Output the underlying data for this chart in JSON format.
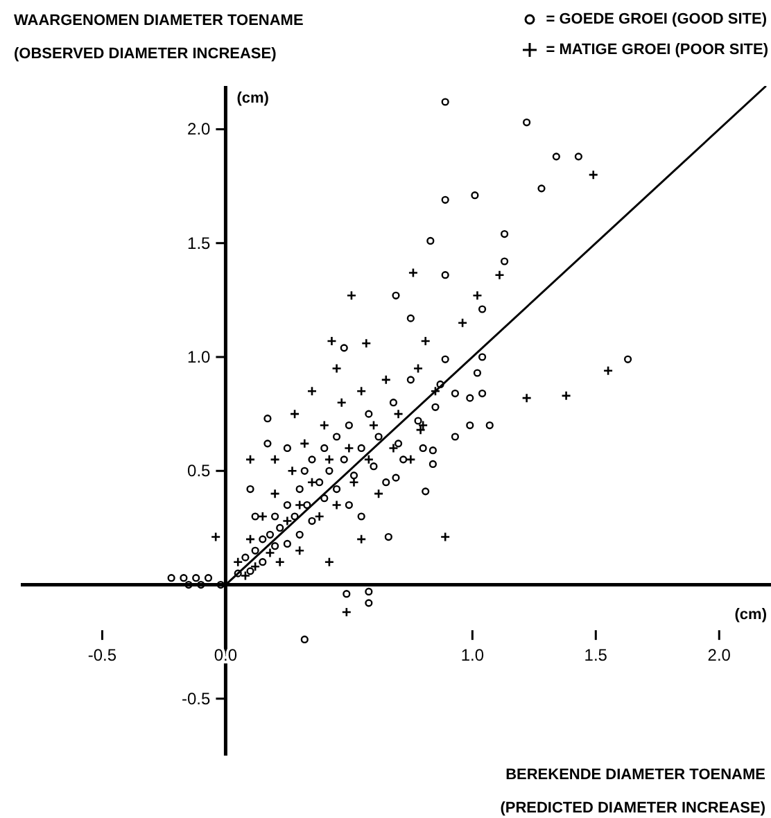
{
  "chart_data": {
    "type": "scatter",
    "ylabel": "WAARGENOMEN DIAMETER TOENAME\n(OBSERVED DIAMETER INCREASE)",
    "xlabel": "BEREKENDE DIAMETER TOENAME\n(PREDICTED DIAMETER INCREASE)",
    "annotations": [
      "(cm)",
      "(cm)"
    ],
    "xlim": [
      -0.83,
      2.21
    ],
    "ylim": [
      -0.75,
      2.19
    ],
    "xticks": [
      {
        "value": -0.5,
        "label": "-0.5"
      },
      {
        "value": 0,
        "label": "0.0"
      },
      {
        "value": 1,
        "label": "1.0"
      },
      {
        "value": 1.5,
        "label": "1.5"
      },
      {
        "value": 2,
        "label": "2.0"
      }
    ],
    "yticks": [
      {
        "value": -0.5,
        "label": "-0.5"
      },
      {
        "value": 0.5,
        "label": "0.5"
      },
      {
        "value": 1,
        "label": "1.0"
      },
      {
        "value": 1.5,
        "label": "1.5"
      },
      {
        "value": 2,
        "label": "2.0"
      }
    ],
    "grid": false,
    "legend": "top right",
    "series": [
      {
        "name": "= GOEDE GROEI (GOOD SITE)",
        "marker": "circle",
        "color": "#000000",
        "x": [
          0.89,
          1.22,
          1.34,
          1.43,
          1.28,
          0.89,
          1.01,
          1.13,
          0.83,
          1.13,
          0.89,
          0.69,
          0.75,
          1.04,
          0.48,
          1.04,
          0.89,
          1.63,
          1.02,
          0.87,
          0.93,
          0.99,
          1.04,
          0.99,
          1.07,
          0.93,
          0.84,
          0.84,
          0.69,
          0.81,
          0.66,
          0.49,
          0.58,
          0.58,
          0.32,
          -0.22,
          -0.17,
          -0.12,
          -0.07,
          -0.15,
          -0.1,
          -0.02,
          0.05,
          0.08,
          0.1,
          0.12,
          0.15,
          0.15,
          0.18,
          0.2,
          0.2,
          0.22,
          0.25,
          0.25,
          0.28,
          0.3,
          0.3,
          0.32,
          0.33,
          0.35,
          0.35,
          0.38,
          0.4,
          0.4,
          0.42,
          0.45,
          0.45,
          0.48,
          0.5,
          0.5,
          0.52,
          0.55,
          0.55,
          0.58,
          0.6,
          0.62,
          0.65,
          0.68,
          0.7,
          0.72,
          0.75,
          0.78,
          0.8,
          0.85,
          0.17,
          0.17,
          0.1,
          0.25,
          0.12
        ],
        "values": [
          2.12,
          2.03,
          1.88,
          1.88,
          1.74,
          1.69,
          1.71,
          1.54,
          1.51,
          1.42,
          1.36,
          1.27,
          1.17,
          1.21,
          1.04,
          1.0,
          0.99,
          0.99,
          0.93,
          0.88,
          0.84,
          0.82,
          0.84,
          0.7,
          0.7,
          0.65,
          0.59,
          0.53,
          0.47,
          0.41,
          0.21,
          -0.04,
          -0.08,
          -0.03,
          -0.24,
          0.03,
          0.03,
          0.03,
          0.03,
          0,
          0,
          0,
          0.05,
          0.12,
          0.06,
          0.15,
          0.2,
          0.1,
          0.22,
          0.17,
          0.3,
          0.25,
          0.18,
          0.35,
          0.3,
          0.22,
          0.42,
          0.5,
          0.35,
          0.28,
          0.55,
          0.45,
          0.38,
          0.6,
          0.5,
          0.42,
          0.65,
          0.55,
          0.35,
          0.7,
          0.48,
          0.6,
          0.3,
          0.75,
          0.52,
          0.65,
          0.45,
          0.8,
          0.62,
          0.55,
          0.9,
          0.72,
          0.6,
          0.78,
          0.73,
          0.62,
          0.42,
          0.6,
          0.3
        ]
      },
      {
        "name": "= MATIGE GROEI (POOR SITE)",
        "marker": "cross",
        "color": "#000000",
        "x": [
          0.51,
          0.76,
          1.11,
          1.02,
          0.96,
          0.43,
          0.57,
          0.81,
          1.49,
          1.55,
          1.38,
          0.89,
          0.49,
          -0.04,
          1.22,
          0.79,
          0.05,
          0.08,
          0.1,
          0.12,
          0.15,
          0.18,
          0.2,
          0.22,
          0.25,
          0.27,
          0.3,
          0.3,
          0.32,
          0.35,
          0.38,
          0.4,
          0.42,
          0.45,
          0.47,
          0.5,
          0.52,
          0.55,
          0.58,
          0.6,
          0.62,
          0.65,
          0.68,
          0.7,
          0.75,
          0.78,
          0.8,
          0.85,
          0.28,
          0.35,
          0.45,
          0.55,
          0.42,
          0.2,
          0.1
        ],
        "values": [
          1.27,
          1.37,
          1.36,
          1.27,
          1.15,
          1.07,
          1.06,
          1.07,
          1.8,
          0.94,
          0.83,
          0.21,
          -0.12,
          0.21,
          0.82,
          0.68,
          0.1,
          0.04,
          0.2,
          0.08,
          0.3,
          0.14,
          0.4,
          0.1,
          0.28,
          0.5,
          0.35,
          0.15,
          0.62,
          0.45,
          0.3,
          0.7,
          0.55,
          0.35,
          0.8,
          0.6,
          0.45,
          0.85,
          0.55,
          0.7,
          0.4,
          0.9,
          0.6,
          0.75,
          0.55,
          0.95,
          0.7,
          0.85,
          0.75,
          0.85,
          0.95,
          0.2,
          0.1,
          0.55,
          0.55
        ]
      },
      {
        "type": "line",
        "color": "#000000",
        "x": [
          0,
          2.19
        ],
        "values": [
          0,
          2.19
        ]
      }
    ]
  }
}
